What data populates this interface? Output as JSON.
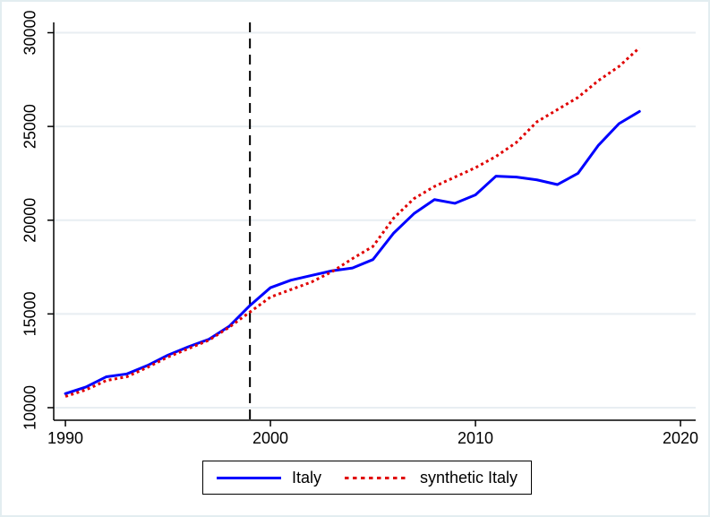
{
  "chart_data": {
    "type": "line",
    "title": "",
    "xlabel": "",
    "ylabel": "",
    "grid": true,
    "legend_position": "bottom",
    "x": [
      1990,
      1991,
      1992,
      1993,
      1994,
      1995,
      1996,
      1997,
      1998,
      1999,
      2000,
      2001,
      2002,
      2003,
      2004,
      2005,
      2006,
      2007,
      2008,
      2009,
      2010,
      2011,
      2012,
      2013,
      2014,
      2015,
      2016,
      2017,
      2018
    ],
    "series": [
      {
        "name": "Italy",
        "color": "#0000ff",
        "style": "solid",
        "values": [
          10750,
          11100,
          11650,
          11800,
          12250,
          12800,
          13250,
          13650,
          14350,
          15450,
          16400,
          16800,
          17050,
          17300,
          17450,
          17900,
          19300,
          20350,
          21100,
          20900,
          21350,
          22350,
          22300,
          22150,
          21900,
          22500,
          24000,
          25150,
          25800
        ]
      },
      {
        "name": "synthetic Italy",
        "color": "#e00000",
        "style": "dotted",
        "values": [
          10600,
          10950,
          11450,
          11650,
          12150,
          12700,
          13150,
          13600,
          14300,
          15100,
          15900,
          16300,
          16700,
          17250,
          17950,
          18600,
          20100,
          21150,
          21800,
          22300,
          22800,
          23400,
          24150,
          25250,
          25900,
          26550,
          27450,
          28200,
          29200
        ]
      }
    ],
    "xticks": [
      1990,
      2000,
      2010,
      2020
    ],
    "yticks": [
      10000,
      15000,
      20000,
      25000,
      30000
    ],
    "xlim": [
      1989.43,
      2020.74
    ],
    "ylim": [
      9330,
      30550
    ],
    "treatment_line_x": 1999
  },
  "colors": {
    "axis": "#000000",
    "gridline": "#e8eef2",
    "treatment_line": "#000000",
    "background": "#ffffff",
    "legend_border": "#000000"
  }
}
